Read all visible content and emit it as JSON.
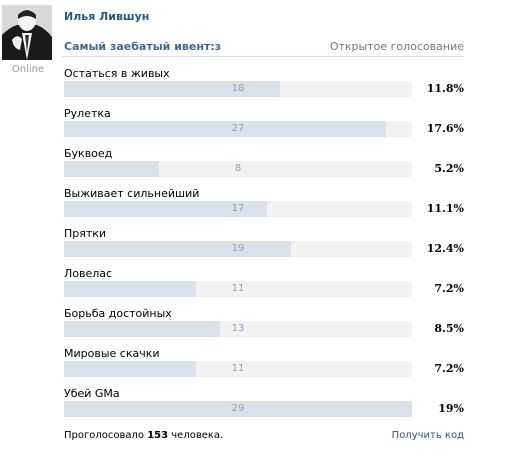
{
  "author": {
    "name": "Илья Лившун",
    "status": "Online"
  },
  "poll": {
    "title": "Самый заебатый ивент:з",
    "type": "Открытое голосование",
    "options": [
      {
        "label": "Остаться в живых",
        "votes": 18,
        "percent": "11.8%",
        "share": 0.118
      },
      {
        "label": "Рулетка",
        "votes": 27,
        "percent": "17.6%",
        "share": 0.176
      },
      {
        "label": "Буквоед",
        "votes": 8,
        "percent": "5.2%",
        "share": 0.052
      },
      {
        "label": "Выживает сильнейший",
        "votes": 17,
        "percent": "11.1%",
        "share": 0.111
      },
      {
        "label": "Прятки",
        "votes": 19,
        "percent": "12.4%",
        "share": 0.124
      },
      {
        "label": "Ловелас",
        "votes": 11,
        "percent": "7.2%",
        "share": 0.072
      },
      {
        "label": "Борьба достойных",
        "votes": 13,
        "percent": "8.5%",
        "share": 0.085
      },
      {
        "label": "Мировые скачки",
        "votes": 11,
        "percent": "7.2%",
        "share": 0.072
      },
      {
        "label": "Убей GMa",
        "votes": 29,
        "percent": "19%",
        "share": 0.19
      }
    ],
    "total_prefix": "Проголосовало",
    "total_count": "153",
    "total_suffix": "человека.",
    "get_code_label": "Получить код"
  }
}
